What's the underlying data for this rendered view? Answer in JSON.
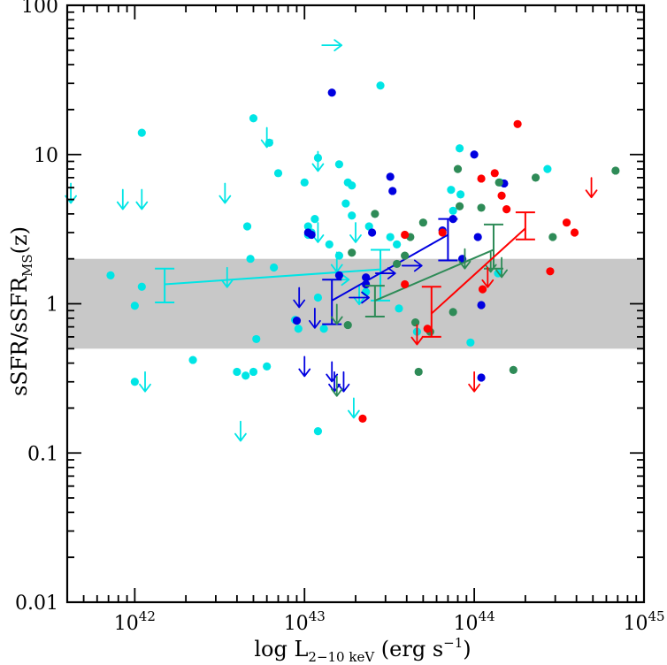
{
  "chart_data": {
    "type": "scatter",
    "title": "",
    "xlabel": "log L2-10 keV (erg s-1)",
    "ylabel": "sSFR/sSFRMS(z)",
    "xlabel_parts": {
      "main": "log L",
      "sub": "2−10 keV",
      "unit": " (erg s",
      "sup": "−1",
      "close": ")"
    },
    "ylabel_parts": {
      "main": "sSFR/sSFR",
      "sub": "MS",
      "tail": "(z)"
    },
    "x_scale": "log",
    "y_scale": "log",
    "xlim": [
      4e+41,
      1e+45
    ],
    "ylim": [
      0.01,
      100
    ],
    "x_ticks": [
      {
        "value": 1e+42,
        "base": "10",
        "exp": "42"
      },
      {
        "value": 1e+43,
        "base": "10",
        "exp": "43"
      },
      {
        "value": 1e+44,
        "base": "10",
        "exp": "44"
      },
      {
        "value": 1e+45,
        "base": "10",
        "exp": "45"
      }
    ],
    "y_ticks": [
      {
        "value": 0.01,
        "label": "0.01"
      },
      {
        "value": 0.1,
        "label": "0.1"
      },
      {
        "value": 1,
        "label": "1"
      },
      {
        "value": 10,
        "label": "10"
      },
      {
        "value": 100,
        "label": "100"
      }
    ],
    "grid": false,
    "band": {
      "y_low": 0.5,
      "y_high": 2.0,
      "color": "#c8c8c8"
    },
    "series": [
      {
        "color": "#00e5e5",
        "points": [
          [
            7.2e+41,
            1.55
          ],
          [
            1e+42,
            0.97
          ],
          [
            1.1e+42,
            1.3
          ],
          [
            1.1e+42,
            14
          ],
          [
            1e+42,
            0.3
          ],
          [
            2.2e+42,
            0.42
          ],
          [
            4e+42,
            0.35
          ],
          [
            4.5e+42,
            0.33
          ],
          [
            5e+42,
            0.35
          ],
          [
            6e+42,
            0.38
          ],
          [
            5.2e+42,
            0.58
          ],
          [
            4.6e+42,
            3.3
          ],
          [
            4.8e+42,
            2.0
          ],
          [
            5e+42,
            17.5
          ],
          [
            6.2e+42,
            12
          ],
          [
            7e+42,
            7.5
          ],
          [
            6.6e+42,
            1.75
          ],
          [
            8.8e+42,
            0.78
          ],
          [
            9.2e+42,
            0.68
          ],
          [
            1e+43,
            6.5
          ],
          [
            1.05e+43,
            3.3
          ],
          [
            1.05e+43,
            2.9
          ],
          [
            1.1e+43,
            3.0
          ],
          [
            1.15e+43,
            3.7
          ],
          [
            1.2e+43,
            9.5
          ],
          [
            1.2e+43,
            0.14
          ],
          [
            1.2e+43,
            1.1
          ],
          [
            1.3e+43,
            0.68
          ],
          [
            1.4e+43,
            2.5
          ],
          [
            1.6e+43,
            8.6
          ],
          [
            1.6e+43,
            2.1
          ],
          [
            1.75e+43,
            4.7
          ],
          [
            1.8e+43,
            6.5
          ],
          [
            1.9e+43,
            6.2
          ],
          [
            1.9e+43,
            3.9
          ],
          [
            2.3e+43,
            1.2
          ],
          [
            2.4e+43,
            3.3
          ],
          [
            2.8e+43,
            29
          ],
          [
            3.2e+43,
            2.8
          ],
          [
            3.5e+43,
            2.5
          ],
          [
            3.6e+43,
            0.93
          ],
          [
            4.6e+43,
            0.65
          ],
          [
            7.3e+43,
            5.8
          ],
          [
            7.5e+43,
            4.2
          ],
          [
            8.2e+43,
            11
          ],
          [
            8.3e+43,
            5.4
          ],
          [
            9.5e+43,
            0.55
          ],
          [
            1.38e+44,
            1.6
          ],
          [
            1.42e+44,
            6.5
          ],
          [
            2.7e+44,
            8.0
          ]
        ],
        "arrows": [
          {
            "x": 4.2e+41,
            "y": 5.5,
            "dir": "down"
          },
          {
            "x": 8.5e+41,
            "y": 5.0,
            "dir": "down"
          },
          {
            "x": 1.15e+42,
            "y": 0.3,
            "dir": "down"
          },
          {
            "x": 1.1e+42,
            "y": 5.0,
            "dir": "down"
          },
          {
            "x": 3.4e+42,
            "y": 5.5,
            "dir": "down"
          },
          {
            "x": 6e+42,
            "y": 13,
            "dir": "down"
          },
          {
            "x": 4.2e+42,
            "y": 0.14,
            "dir": "down"
          },
          {
            "x": 3.5e+42,
            "y": 1.5,
            "dir": "down"
          },
          {
            "x": 1.2e+43,
            "y": 9,
            "dir": "down"
          },
          {
            "x": 1.2e+43,
            "y": 3.0,
            "dir": "down"
          },
          {
            "x": 1.55e+43,
            "y": 1.9,
            "dir": "down"
          },
          {
            "x": 2e+43,
            "y": 3.0,
            "dir": "down"
          },
          {
            "x": 2.1e+43,
            "y": 1.15,
            "dir": "down"
          },
          {
            "x": 1.95e+43,
            "y": 0.2,
            "dir": "down"
          },
          {
            "x": 1.6e+43,
            "y": 1.45,
            "dir": "right"
          },
          {
            "x": 1.45e+43,
            "y": 54,
            "dir": "right"
          }
        ],
        "trend": {
          "x": [
            1.5e+42,
            2.8e+43
          ],
          "y": [
            1.35,
            1.7
          ]
        },
        "errorbars": [
          {
            "x": 1.5e+42,
            "ylo": 1.02,
            "yhi": 1.72
          },
          {
            "x": 2.8e+43,
            "ylo": 1.05,
            "yhi": 2.3
          }
        ]
      },
      {
        "color": "#0000e0",
        "points": [
          [
            1.05e+43,
            3.0
          ],
          [
            1.1e+43,
            2.9
          ],
          [
            1.45e+43,
            26
          ],
          [
            1.6e+43,
            1.55
          ],
          [
            2.3e+43,
            1.5
          ],
          [
            2.3e+43,
            1.35
          ],
          [
            2.5e+43,
            3.0
          ],
          [
            3.2e+43,
            7.1
          ],
          [
            3.3e+43,
            5.7
          ],
          [
            6.5e+43,
            3.1
          ],
          [
            7.5e+43,
            3.7
          ],
          [
            8.5e+43,
            2.0
          ],
          [
            1e+44,
            10
          ],
          [
            1.1e+44,
            0.98
          ],
          [
            1.1e+44,
            0.32
          ],
          [
            1.05e+44,
            2.8
          ],
          [
            1.5e+44,
            6.4
          ],
          [
            9e+42,
            0.77
          ]
        ],
        "arrows": [
          {
            "x": 9.3e+42,
            "y": 1.1,
            "dir": "down"
          },
          {
            "x": 1e+43,
            "y": 0.38,
            "dir": "down"
          },
          {
            "x": 1.15e+43,
            "y": 0.8,
            "dir": "down"
          },
          {
            "x": 1.45e+43,
            "y": 0.35,
            "dir": "down"
          },
          {
            "x": 1.5e+43,
            "y": 0.3,
            "dir": "down"
          },
          {
            "x": 1.7e+43,
            "y": 0.3,
            "dir": "down"
          },
          {
            "x": 2.1e+43,
            "y": 1.1,
            "dir": "right"
          },
          {
            "x": 3e+43,
            "y": 1.6,
            "dir": "right"
          },
          {
            "x": 4.3e+43,
            "y": 1.8,
            "dir": "right"
          }
        ],
        "trend": {
          "x": [
            1.45e+43,
            7e+43
          ],
          "y": [
            1.05,
            2.9
          ]
        },
        "errorbars": [
          {
            "x": 1.45e+43,
            "ylo": 0.73,
            "yhi": 1.45
          },
          {
            "x": 7e+43,
            "ylo": 1.95,
            "yhi": 3.7
          }
        ]
      },
      {
        "color": "#2e8b57",
        "points": [
          [
            1.8e+43,
            0.72
          ],
          [
            1.9e+43,
            2.2
          ],
          [
            2.6e+43,
            4.0
          ],
          [
            3.5e+43,
            1.85
          ],
          [
            3.9e+43,
            2.1
          ],
          [
            4.2e+43,
            2.8
          ],
          [
            4.5e+43,
            0.75
          ],
          [
            4.7e+43,
            0.35
          ],
          [
            5e+43,
            3.5
          ],
          [
            5.5e+43,
            0.65
          ],
          [
            7.5e+43,
            0.88
          ],
          [
            8e+43,
            8.0
          ],
          [
            8.2e+43,
            4.5
          ],
          [
            1.1e+44,
            4.4
          ],
          [
            1.4e+44,
            6.5
          ],
          [
            1.7e+44,
            0.36
          ],
          [
            2.3e+44,
            7.0
          ],
          [
            2.9e+44,
            2.8
          ],
          [
            6.8e+44,
            7.8
          ]
        ],
        "arrows": [
          {
            "x": 1.55e+43,
            "y": 0.85,
            "dir": "down"
          },
          {
            "x": 1.55e+43,
            "y": 0.28,
            "dir": "down"
          },
          {
            "x": 8.8e+43,
            "y": 2.0,
            "dir": "down"
          },
          {
            "x": 1.25e+44,
            "y": 1.9,
            "dir": "down"
          },
          {
            "x": 1.45e+44,
            "y": 1.75,
            "dir": "down"
          }
        ],
        "trend": {
          "x": [
            2.6e+43,
            1.3e+44
          ],
          "y": [
            1.05,
            2.3
          ]
        },
        "errorbars": [
          {
            "x": 2.6e+43,
            "ylo": 0.82,
            "yhi": 1.32
          },
          {
            "x": 1.3e+44,
            "ylo": 1.72,
            "yhi": 3.4
          }
        ]
      },
      {
        "color": "#ff0000",
        "points": [
          [
            2.2e+43,
            0.17
          ],
          [
            3.9e+43,
            1.35
          ],
          [
            3.9e+43,
            2.9
          ],
          [
            5.3e+43,
            0.68
          ],
          [
            6.5e+43,
            3.0
          ],
          [
            1.1e+44,
            6.9
          ],
          [
            1.12e+44,
            1.25
          ],
          [
            1.32e+44,
            7.5
          ],
          [
            1.45e+44,
            5.3
          ],
          [
            1.55e+44,
            4.3
          ],
          [
            1.8e+44,
            16
          ],
          [
            2.8e+44,
            1.65
          ],
          [
            3.5e+44,
            3.5
          ],
          [
            3.9e+44,
            3.0
          ]
        ],
        "arrows": [
          {
            "x": 4.6e+43,
            "y": 0.62,
            "dir": "down"
          },
          {
            "x": 1e+44,
            "y": 0.3,
            "dir": "down"
          },
          {
            "x": 1.2e+44,
            "y": 1.5,
            "dir": "down"
          },
          {
            "x": 4.9e+44,
            "y": 6.0,
            "dir": "down"
          }
        ],
        "trend": {
          "x": [
            5.6e+43,
            2e+44
          ],
          "y": [
            0.86,
            3.2
          ]
        },
        "errorbars": [
          {
            "x": 5.6e+43,
            "ylo": 0.6,
            "yhi": 1.3
          },
          {
            "x": 2e+44,
            "ylo": 2.7,
            "yhi": 4.1
          }
        ]
      }
    ]
  }
}
